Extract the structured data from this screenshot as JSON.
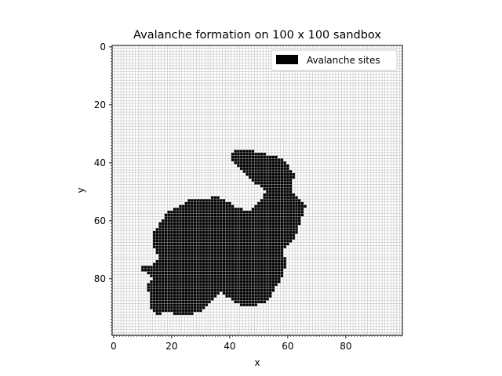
{
  "chart_data": {
    "type": "heatmap",
    "title": "Avalanche formation on 100 x 100 sandbox",
    "xlabel": "x",
    "ylabel": "y",
    "grid_size": [
      100,
      100
    ],
    "xlim": [
      0,
      100
    ],
    "ylim": [
      100,
      0
    ],
    "y_inverted": true,
    "x_ticks": [
      "0",
      "20",
      "40",
      "60",
      "80"
    ],
    "y_ticks": [
      "0",
      "20",
      "40",
      "60",
      "80"
    ],
    "grid": true,
    "legend": {
      "placement": "top-right",
      "entries": [
        {
          "label": "Avalanche sites",
          "color": "#000000"
        }
      ]
    },
    "avalanche_region_outline_points": [
      [
        47,
        36
      ],
      [
        44,
        36
      ],
      [
        41,
        37
      ],
      [
        41,
        39
      ],
      [
        43,
        41
      ],
      [
        46,
        44
      ],
      [
        48,
        47
      ],
      [
        51,
        48
      ],
      [
        53,
        50
      ],
      [
        52,
        53
      ],
      [
        48,
        57
      ],
      [
        43,
        56
      ],
      [
        40,
        54
      ],
      [
        36,
        52
      ],
      [
        32,
        53
      ],
      [
        27,
        53
      ],
      [
        24,
        55
      ],
      [
        20,
        57
      ],
      [
        18,
        59
      ],
      [
        16,
        62
      ],
      [
        14,
        65
      ],
      [
        14,
        69
      ],
      [
        16,
        73
      ],
      [
        14,
        76
      ],
      [
        11,
        76
      ],
      [
        9,
        77
      ],
      [
        12,
        78
      ],
      [
        12,
        79
      ],
      [
        14,
        80
      ],
      [
        12,
        83
      ],
      [
        13,
        87
      ],
      [
        13,
        91
      ],
      [
        16,
        93
      ],
      [
        19,
        92
      ],
      [
        23,
        93
      ],
      [
        27,
        93
      ],
      [
        30,
        92
      ],
      [
        33,
        90
      ],
      [
        35,
        87
      ],
      [
        38,
        85
      ],
      [
        40,
        87
      ],
      [
        43,
        89
      ],
      [
        45,
        90
      ],
      [
        48,
        90
      ],
      [
        52,
        89
      ],
      [
        55,
        87
      ],
      [
        56,
        84
      ],
      [
        58,
        82
      ],
      [
        59,
        79
      ],
      [
        60,
        75
      ],
      [
        59,
        71
      ],
      [
        62,
        68
      ],
      [
        64,
        64
      ],
      [
        65,
        61
      ],
      [
        66,
        58
      ],
      [
        67,
        55
      ],
      [
        65,
        53
      ],
      [
        62,
        51
      ],
      [
        62,
        48
      ],
      [
        63,
        45
      ],
      [
        61,
        42
      ],
      [
        59,
        39
      ],
      [
        55,
        38
      ],
      [
        51,
        37
      ]
    ],
    "cell_colors": {
      "avalanche": "#000000",
      "empty": "#ffffff",
      "grid": "#b0b0b0"
    }
  }
}
